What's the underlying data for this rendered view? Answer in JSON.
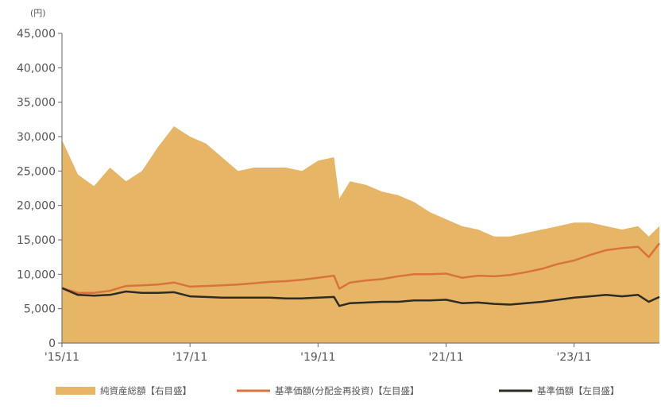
{
  "colors": {
    "area": "#E6B666",
    "reinvested_line": "#D9733A",
    "base_line": "#2E2A24",
    "axis": "#666666"
  },
  "chart_data": {
    "type": "line",
    "title": "",
    "ylabel": "",
    "y_unit": "(円)",
    "ylim": [
      0,
      45000
    ],
    "y_ticks": [
      "45,000",
      "40,000",
      "35,000",
      "30,000",
      "25,000",
      "20,000",
      "15,000",
      "10,000",
      "5,000",
      "0"
    ],
    "x_ticks": [
      "'15/11",
      "'17/11",
      "'19/11",
      "'21/11",
      "'23/11"
    ],
    "x_tick_dates": [
      "2015-11",
      "2017-11",
      "2019-11",
      "2021-11",
      "2023-11"
    ],
    "x_range": [
      "2015-11",
      "2025-03"
    ],
    "grid": false,
    "legend_position": "bottom",
    "series": [
      {
        "name": "純資産総額【右目盛】",
        "kind": "area",
        "x": [
          "2015-11",
          "2016-02",
          "2016-05",
          "2016-08",
          "2016-11",
          "2017-02",
          "2017-05",
          "2017-08",
          "2017-11",
          "2018-02",
          "2018-05",
          "2018-08",
          "2018-11",
          "2019-02",
          "2019-05",
          "2019-08",
          "2019-11",
          "2020-02",
          "2020-03",
          "2020-05",
          "2020-08",
          "2020-11",
          "2021-02",
          "2021-05",
          "2021-08",
          "2021-11",
          "2022-02",
          "2022-05",
          "2022-08",
          "2022-11",
          "2023-02",
          "2023-05",
          "2023-08",
          "2023-11",
          "2024-02",
          "2024-05",
          "2024-08",
          "2024-11",
          "2025-01",
          "2025-03"
        ],
        "values": [
          29500,
          24500,
          22800,
          25500,
          23500,
          25000,
          28500,
          31500,
          30000,
          29000,
          27000,
          25000,
          25500,
          25500,
          25500,
          25000,
          26500,
          27000,
          21000,
          23500,
          23000,
          22000,
          21500,
          20500,
          19000,
          18000,
          17000,
          16500,
          15500,
          15500,
          16000,
          16500,
          17000,
          17500,
          17500,
          17000,
          16500,
          17000,
          15500,
          17000
        ]
      },
      {
        "name": "基準価額(分配金再投資)【左目盛】",
        "kind": "line",
        "x": [
          "2015-11",
          "2016-02",
          "2016-05",
          "2016-08",
          "2016-11",
          "2017-02",
          "2017-05",
          "2017-08",
          "2017-11",
          "2018-02",
          "2018-05",
          "2018-08",
          "2018-11",
          "2019-02",
          "2019-05",
          "2019-08",
          "2019-11",
          "2020-02",
          "2020-03",
          "2020-05",
          "2020-08",
          "2020-11",
          "2021-02",
          "2021-05",
          "2021-08",
          "2021-11",
          "2022-02",
          "2022-05",
          "2022-08",
          "2022-11",
          "2023-02",
          "2023-05",
          "2023-08",
          "2023-11",
          "2024-02",
          "2024-05",
          "2024-08",
          "2024-11",
          "2025-01",
          "2025-03"
        ],
        "values": [
          8000,
          7300,
          7300,
          7600,
          8300,
          8400,
          8500,
          8800,
          8200,
          8300,
          8400,
          8500,
          8700,
          8900,
          9000,
          9200,
          9500,
          9800,
          7900,
          8800,
          9100,
          9300,
          9700,
          10000,
          10000,
          10100,
          9500,
          9800,
          9700,
          9900,
          10300,
          10800,
          11500,
          12000,
          12800,
          13500,
          13800,
          14000,
          12500,
          14500
        ]
      },
      {
        "name": "基準価額【左目盛】",
        "kind": "line",
        "x": [
          "2015-11",
          "2016-02",
          "2016-05",
          "2016-08",
          "2016-11",
          "2017-02",
          "2017-05",
          "2017-08",
          "2017-11",
          "2018-02",
          "2018-05",
          "2018-08",
          "2018-11",
          "2019-02",
          "2019-05",
          "2019-08",
          "2019-11",
          "2020-02",
          "2020-03",
          "2020-05",
          "2020-08",
          "2020-11",
          "2021-02",
          "2021-05",
          "2021-08",
          "2021-11",
          "2022-02",
          "2022-05",
          "2022-08",
          "2022-11",
          "2023-02",
          "2023-05",
          "2023-08",
          "2023-11",
          "2024-02",
          "2024-05",
          "2024-08",
          "2024-11",
          "2025-01",
          "2025-03"
        ],
        "values": [
          8000,
          7000,
          6900,
          7000,
          7500,
          7300,
          7300,
          7400,
          6800,
          6700,
          6600,
          6600,
          6600,
          6600,
          6500,
          6500,
          6600,
          6700,
          5400,
          5800,
          5900,
          6000,
          6000,
          6200,
          6200,
          6300,
          5800,
          5900,
          5700,
          5600,
          5800,
          6000,
          6300,
          6600,
          6800,
          7000,
          6800,
          7000,
          6000,
          6700
        ]
      }
    ]
  }
}
